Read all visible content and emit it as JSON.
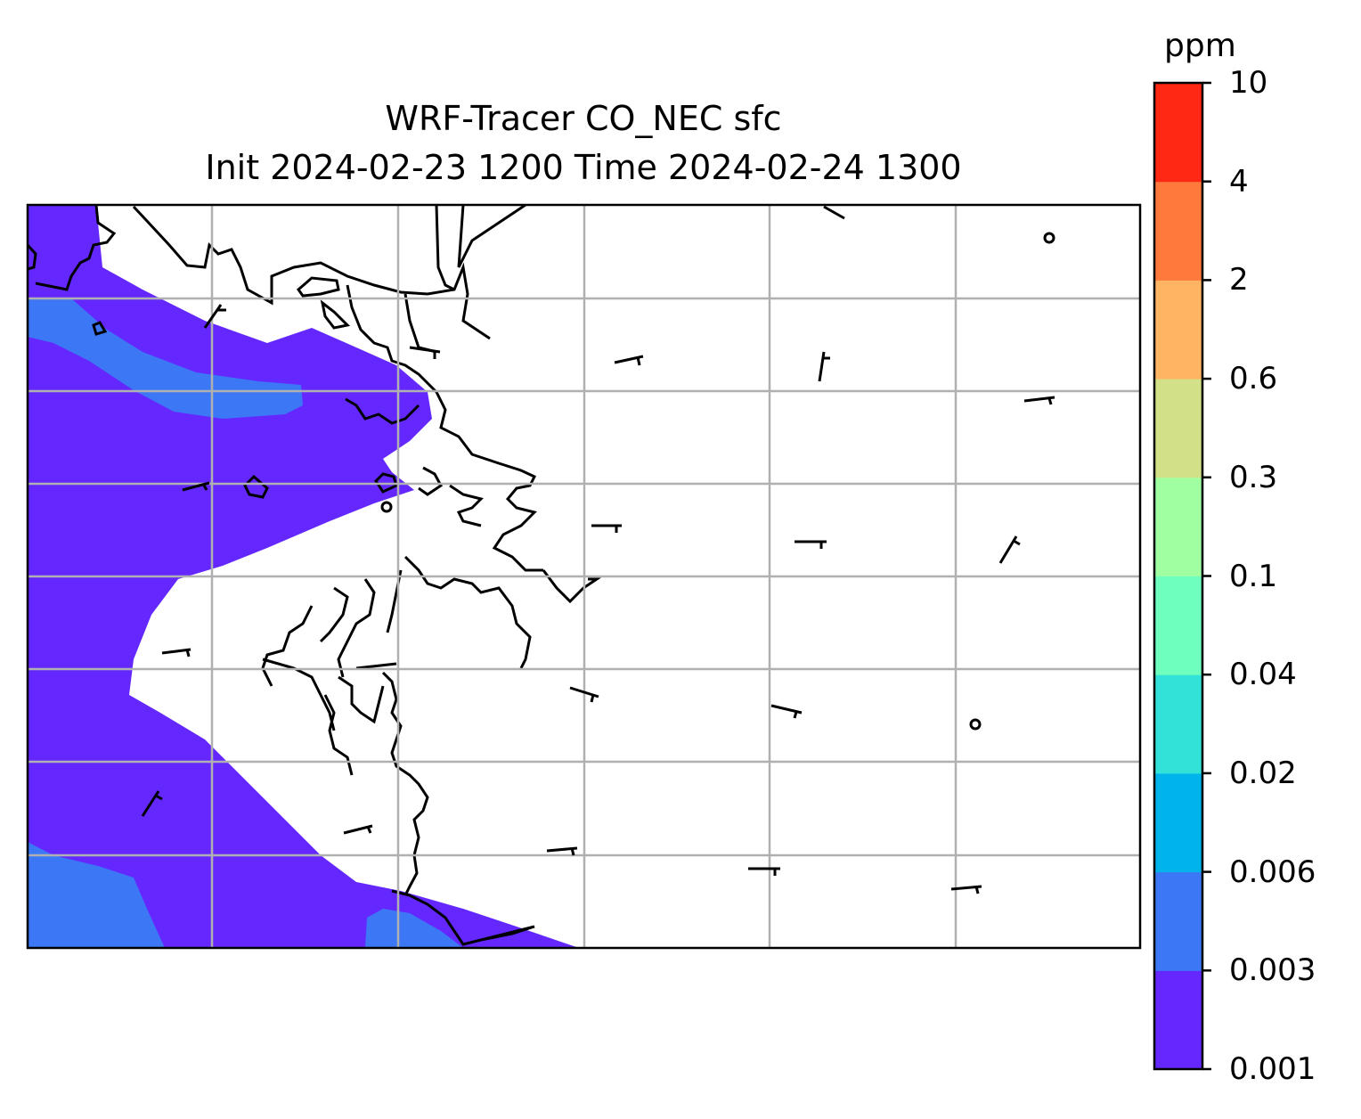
{
  "title": {
    "line1": "WRF-Tracer CO_NEC sfc",
    "line2": "Init 2024-02-23 1200 Time 2024-02-24 1300"
  },
  "colorbar": {
    "unit": "ppm",
    "levels": [
      "0.001",
      "0.003",
      "0.006",
      "0.02",
      "0.04",
      "0.1",
      "0.3",
      "0.6",
      "2",
      "4",
      "10"
    ],
    "colors": [
      "#6428ff",
      "#3c78f5",
      "#00b4eb",
      "#32e1d7",
      "#6effbe",
      "#a0ffa0",
      "#d2e187",
      "#ffb464",
      "#ff783c",
      "#ff2814"
    ]
  },
  "map": {
    "shaded_fields": [
      {
        "level_band": "0.001-0.003",
        "color": "#6428ff"
      },
      {
        "level_band": "0.003-0.006",
        "color": "#3c78f5"
      }
    ],
    "wind_barbs": "present",
    "coastlines": "present",
    "gridlines": "present"
  }
}
